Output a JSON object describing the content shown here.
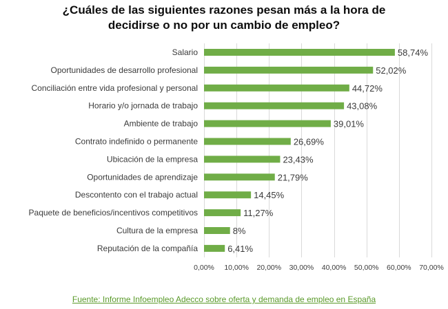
{
  "chart_data": {
    "type": "bar",
    "orientation": "horizontal",
    "title_lines": [
      "¿Cuáles de las siguientes razones pesan más a la hora de",
      "decidirse o no por un cambio de empleo?"
    ],
    "categories": [
      "Salario",
      "Oportunidades de desarrollo profesional",
      "Conciliación entre vida profesional y personal",
      "Horario y/o jornada de trabajo",
      "Ambiente de trabajo",
      "Contrato indefinido o permanente",
      "Ubicación de la empresa",
      "Oportunidades de aprendizaje",
      "Descontento con el trabajo actual",
      "Paquete de beneficios/incentivos competitivos",
      "Cultura de la empresa",
      "Reputación de la compañía"
    ],
    "values": [
      58.74,
      52.02,
      44.72,
      43.08,
      39.01,
      26.69,
      23.43,
      21.79,
      14.45,
      11.27,
      8,
      6.41
    ],
    "value_labels": [
      "58,74%",
      "52,02%",
      "44,72%",
      "43,08%",
      "39,01%",
      "26,69%",
      "23,43%",
      "21,79%",
      "14,45%",
      "11,27%",
      "8%",
      "6,41%"
    ],
    "xlim": [
      0,
      70
    ],
    "ticks": [
      0,
      10,
      20,
      30,
      40,
      50,
      60,
      70
    ],
    "tick_labels": [
      "0,00%",
      "10,00%",
      "20,00%",
      "30,00%",
      "40,00%",
      "50,00%",
      "60,00%",
      "70,00%"
    ],
    "grid": true,
    "bar_color": "#70ad47",
    "grid_color": "#d9d9d9"
  },
  "source": {
    "text": "Fuente: Informe Infoempleo Adecco sobre oferta y demanda de empleo en España",
    "color": "#5a9a2a"
  }
}
